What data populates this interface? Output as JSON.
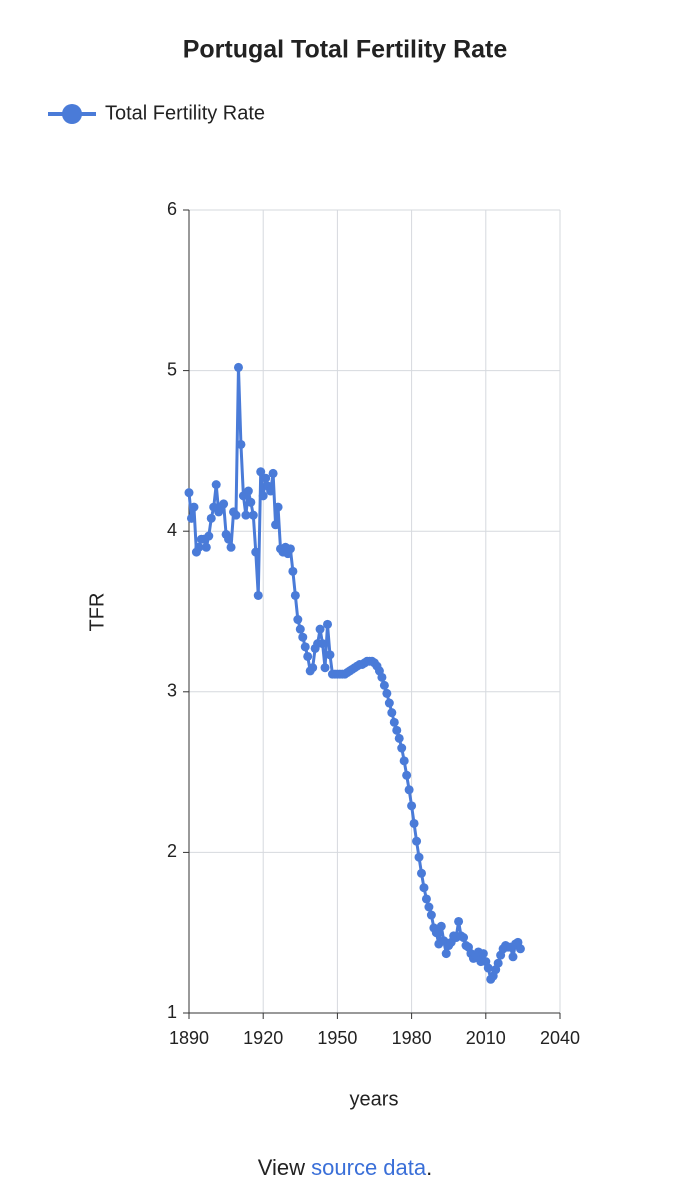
{
  "chart_data": {
    "type": "line",
    "title": "Portugal Total Fertility Rate",
    "x_label": "years",
    "y_label": "TFR",
    "grid": true,
    "legend": "top-left",
    "xlim": [
      1890,
      2040
    ],
    "xticks": [
      1890,
      1920,
      1950,
      1980,
      2010,
      2040
    ],
    "ylim": [
      1,
      6
    ],
    "yticks": [
      1,
      2,
      3,
      4,
      5,
      6
    ],
    "x": [
      1890,
      1891,
      1892,
      1893,
      1894,
      1895,
      1896,
      1897,
      1898,
      1899,
      1900,
      1901,
      1902,
      1903,
      1904,
      1905,
      1906,
      1907,
      1908,
      1909,
      1910,
      1911,
      1912,
      1913,
      1914,
      1915,
      1916,
      1917,
      1918,
      1919,
      1920,
      1921,
      1922,
      1923,
      1924,
      1925,
      1926,
      1927,
      1928,
      1929,
      1930,
      1931,
      1932,
      1933,
      1934,
      1935,
      1936,
      1937,
      1938,
      1939,
      1940,
      1941,
      1942,
      1943,
      1944,
      1945,
      1946,
      1947,
      1948,
      1949,
      1950,
      1951,
      1952,
      1953,
      1954,
      1955,
      1956,
      1957,
      1958,
      1959,
      1960,
      1961,
      1962,
      1963,
      1964,
      1965,
      1966,
      1967,
      1968,
      1969,
      1970,
      1971,
      1972,
      1973,
      1974,
      1975,
      1976,
      1977,
      1978,
      1979,
      1980,
      1981,
      1982,
      1983,
      1984,
      1985,
      1986,
      1987,
      1988,
      1989,
      1990,
      1991,
      1992,
      1993,
      1994,
      1995,
      1996,
      1997,
      1998,
      1999,
      2000,
      2001,
      2002,
      2003,
      2004,
      2005,
      2006,
      2007,
      2008,
      2009,
      2010,
      2011,
      2012,
      2013,
      2014,
      2015,
      2016,
      2017,
      2018,
      2019,
      2020,
      2021,
      2022,
      2023,
      2024
    ],
    "series": [
      {
        "name": "Total Fertility Rate",
        "color": "#4a7bd8",
        "values": [
          4.24,
          4.08,
          4.15,
          3.87,
          3.9,
          3.95,
          3.95,
          3.9,
          3.97,
          4.08,
          4.15,
          4.29,
          4.12,
          4.15,
          4.17,
          3.98,
          3.95,
          3.9,
          4.12,
          4.1,
          5.02,
          4.54,
          4.22,
          4.1,
          4.25,
          4.18,
          4.1,
          3.87,
          3.6,
          4.37,
          4.22,
          4.33,
          4.28,
          4.25,
          4.36,
          4.04,
          4.15,
          3.89,
          3.87,
          3.9,
          3.86,
          3.89,
          3.75,
          3.6,
          3.45,
          3.39,
          3.34,
          3.28,
          3.22,
          3.13,
          3.15,
          3.27,
          3.3,
          3.39,
          3.3,
          3.15,
          3.42,
          3.23,
          3.11,
          3.11,
          3.11,
          3.11,
          3.11,
          3.11,
          3.12,
          3.13,
          3.14,
          3.15,
          3.16,
          3.17,
          3.17,
          3.18,
          3.19,
          3.19,
          3.19,
          3.18,
          3.16,
          3.13,
          3.09,
          3.04,
          2.99,
          2.93,
          2.87,
          2.81,
          2.76,
          2.71,
          2.65,
          2.57,
          2.48,
          2.39,
          2.29,
          2.18,
          2.07,
          1.97,
          1.87,
          1.78,
          1.71,
          1.66,
          1.61,
          1.53,
          1.5,
          1.43,
          1.54,
          1.45,
          1.37,
          1.42,
          1.44,
          1.48,
          1.47,
          1.57,
          1.48,
          1.47,
          1.42,
          1.41,
          1.37,
          1.34,
          1.36,
          1.38,
          1.32,
          1.37,
          1.32,
          1.28,
          1.21,
          1.23,
          1.27,
          1.31,
          1.36,
          1.4,
          1.42,
          1.41,
          1.41,
          1.35,
          1.43,
          1.44,
          1.4
        ]
      }
    ]
  },
  "footer": {
    "prefix": "View",
    "link": "source data",
    "suffix": "."
  }
}
